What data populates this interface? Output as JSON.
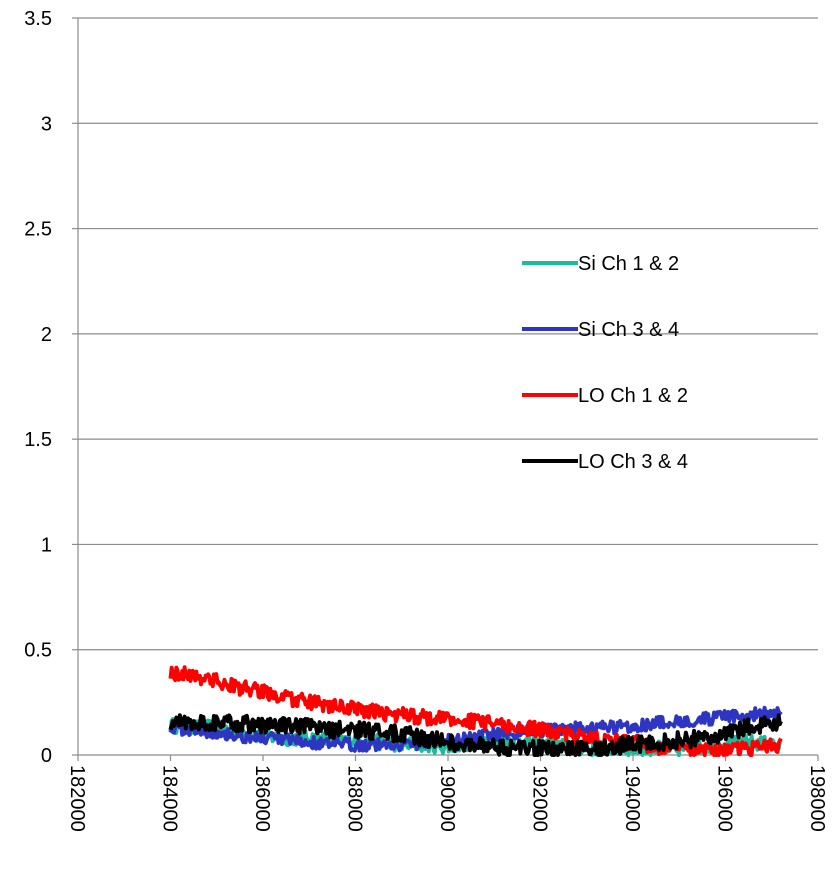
{
  "chart_data": {
    "type": "line",
    "title": "",
    "xlabel": "",
    "ylabel": "",
    "xlim": [
      182000,
      198000
    ],
    "ylim": [
      0,
      3.5
    ],
    "x_ticks": [
      182000,
      184000,
      186000,
      188000,
      190000,
      192000,
      194000,
      196000,
      198000
    ],
    "x_tick_labels": [
      "182000",
      "184000",
      "186000",
      "188000",
      "190000",
      "192000",
      "194000",
      "196000",
      "198000"
    ],
    "y_ticks": [
      0,
      0.5,
      1,
      1.5,
      2,
      2.5,
      3,
      3.5
    ],
    "y_tick_labels": [
      "0",
      "0.5",
      "1",
      "1.5",
      "2",
      "2.5",
      "3",
      "3.5"
    ],
    "grid": "horizontal",
    "legend_position": "right",
    "series": [
      {
        "name": "Si Ch 1 & 2",
        "color": "#1ABC9C",
        "x": [
          184000,
          184500,
          185000,
          185500,
          186000,
          186500,
          187000,
          187500,
          188000,
          188500,
          189000,
          189500,
          190000,
          190500,
          191000,
          191500,
          192000,
          192500,
          193000,
          193500,
          194000,
          194500,
          195000,
          195500,
          196000,
          196500,
          197000,
          197200
        ],
        "y": [
          0.14,
          0.13,
          0.13,
          0.11,
          0.09,
          0.08,
          0.08,
          0.07,
          0.07,
          0.06,
          0.05,
          0.05,
          0.04,
          0.06,
          0.07,
          0.07,
          0.05,
          0.04,
          0.03,
          0.03,
          0.03,
          0.03,
          0.03,
          0.04,
          0.05,
          0.06,
          0.05,
          0.04
        ]
      },
      {
        "name": "Si Ch 3 & 4",
        "color": "#2E35C2",
        "x": [
          184000,
          184500,
          185000,
          185500,
          186000,
          186500,
          187000,
          187500,
          188000,
          188500,
          189000,
          189500,
          190000,
          190500,
          191000,
          191500,
          192000,
          192500,
          193000,
          193500,
          194000,
          194500,
          195000,
          195500,
          196000,
          196500,
          197000,
          197200
        ],
        "y": [
          0.13,
          0.12,
          0.11,
          0.09,
          0.08,
          0.07,
          0.06,
          0.05,
          0.05,
          0.05,
          0.05,
          0.06,
          0.07,
          0.08,
          0.1,
          0.11,
          0.12,
          0.12,
          0.13,
          0.13,
          0.14,
          0.15,
          0.16,
          0.17,
          0.18,
          0.19,
          0.2,
          0.21
        ]
      },
      {
        "name": "LO Ch 1 & 2",
        "color": "#FF0000",
        "x": [
          184000,
          184500,
          185000,
          185500,
          186000,
          186500,
          187000,
          187500,
          188000,
          188500,
          189000,
          189500,
          190000,
          190500,
          191000,
          191500,
          192000,
          192500,
          193000,
          193500,
          194000,
          194500,
          195000,
          195500,
          196000,
          196500,
          197000,
          197200
        ],
        "y": [
          0.39,
          0.38,
          0.35,
          0.32,
          0.3,
          0.27,
          0.25,
          0.23,
          0.22,
          0.2,
          0.19,
          0.18,
          0.17,
          0.16,
          0.15,
          0.13,
          0.12,
          0.1,
          0.08,
          0.07,
          0.06,
          0.04,
          0.03,
          0.03,
          0.02,
          0.03,
          0.04,
          0.05
        ]
      },
      {
        "name": "LO Ch 3 & 4",
        "color": "#000000",
        "x": [
          184000,
          184500,
          185000,
          185500,
          186000,
          186500,
          187000,
          187500,
          188000,
          188500,
          189000,
          189500,
          190000,
          190500,
          191000,
          191500,
          192000,
          192500,
          193000,
          193500,
          194000,
          194500,
          195000,
          195500,
          196000,
          196500,
          197000,
          197200
        ],
        "y": [
          0.15,
          0.16,
          0.15,
          0.15,
          0.14,
          0.14,
          0.13,
          0.12,
          0.12,
          0.11,
          0.1,
          0.08,
          0.06,
          0.05,
          0.04,
          0.03,
          0.03,
          0.03,
          0.03,
          0.04,
          0.05,
          0.06,
          0.07,
          0.08,
          0.1,
          0.13,
          0.15,
          0.17
        ]
      }
    ]
  }
}
